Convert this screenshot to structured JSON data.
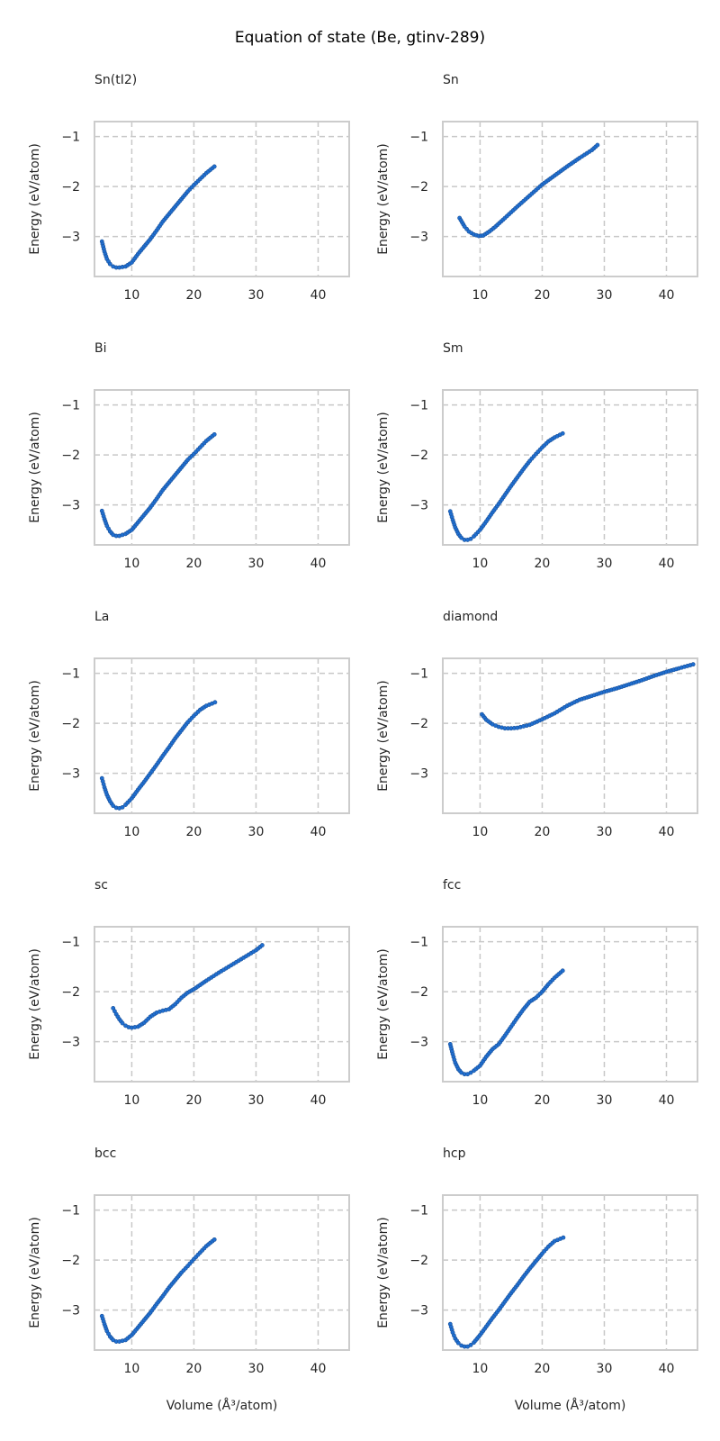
{
  "figure": {
    "suptitle": "Equation of state (Be, gtinv-289)",
    "ylabel": "Energy (eV/atom)",
    "xlabel": "Volume (Å³/atom)",
    "marker_color": "#1f6fd1",
    "marker_edge_color": "#1a4f96",
    "grid_color": "#c8c8c8",
    "spine_color": "#cccccc"
  },
  "chart_data": [
    {
      "type": "scatter",
      "title": "Sn(tI2)",
      "xlim": [
        4,
        45
      ],
      "ylim": [
        -3.8,
        -0.7
      ],
      "xticks": [
        10,
        20,
        30,
        40
      ],
      "yticks": [
        -1,
        -2,
        -3
      ],
      "grid": true,
      "x": [
        5.2,
        5.6,
        6.0,
        6.5,
        7.0,
        7.5,
        8.0,
        9.0,
        10.0,
        11.0,
        12.0,
        13.0,
        14.0,
        15.0,
        16.0,
        17.0,
        18.0,
        19.0,
        20.0,
        21.0,
        22.0,
        23.3
      ],
      "y": [
        -3.1,
        -3.3,
        -3.45,
        -3.55,
        -3.6,
        -3.62,
        -3.62,
        -3.6,
        -3.52,
        -3.35,
        -3.2,
        -3.05,
        -2.88,
        -2.7,
        -2.55,
        -2.4,
        -2.25,
        -2.1,
        -1.97,
        -1.85,
        -1.73,
        -1.6
      ]
    },
    {
      "type": "scatter",
      "title": "Sn",
      "xlim": [
        4,
        45
      ],
      "ylim": [
        -3.8,
        -0.7
      ],
      "xticks": [
        10,
        20,
        30,
        40
      ],
      "yticks": [
        -1,
        -2,
        -3
      ],
      "grid": true,
      "x": [
        6.7,
        7.5,
        8.2,
        9.0,
        9.8,
        10.5,
        11.5,
        12.5,
        14.0,
        16.0,
        18.0,
        20.0,
        22.0,
        24.0,
        26.0,
        28.0,
        28.9
      ],
      "y": [
        -2.63,
        -2.8,
        -2.9,
        -2.96,
        -2.99,
        -2.98,
        -2.9,
        -2.8,
        -2.63,
        -2.4,
        -2.18,
        -1.96,
        -1.78,
        -1.6,
        -1.43,
        -1.27,
        -1.17
      ]
    },
    {
      "type": "scatter",
      "title": "Bi",
      "xlim": [
        4,
        45
      ],
      "ylim": [
        -3.8,
        -0.7
      ],
      "xticks": [
        10,
        20,
        30,
        40
      ],
      "yticks": [
        -1,
        -2,
        -3
      ],
      "grid": true,
      "x": [
        5.2,
        5.6,
        6.0,
        6.5,
        7.0,
        7.5,
        8.0,
        9.0,
        10.0,
        11.0,
        12.0,
        13.0,
        14.0,
        15.0,
        16.0,
        17.0,
        18.0,
        19.0,
        20.0,
        21.0,
        22.0,
        23.3
      ],
      "y": [
        -3.12,
        -3.28,
        -3.42,
        -3.53,
        -3.6,
        -3.62,
        -3.62,
        -3.58,
        -3.5,
        -3.35,
        -3.2,
        -3.05,
        -2.88,
        -2.7,
        -2.55,
        -2.4,
        -2.25,
        -2.1,
        -1.98,
        -1.85,
        -1.72,
        -1.59
      ]
    },
    {
      "type": "scatter",
      "title": "Sm",
      "xlim": [
        4,
        45
      ],
      "ylim": [
        -3.8,
        -0.7
      ],
      "xticks": [
        10,
        20,
        30,
        40
      ],
      "yticks": [
        -1,
        -2,
        -3
      ],
      "grid": true,
      "x": [
        5.2,
        5.6,
        6.0,
        6.5,
        7.0,
        7.5,
        8.0,
        8.5,
        9.0,
        10.0,
        11.0,
        12.0,
        13.0,
        14.0,
        15.0,
        16.0,
        17.0,
        18.0,
        19.0,
        20.0,
        21.0,
        22.0,
        23.3
      ],
      "y": [
        -3.13,
        -3.3,
        -3.45,
        -3.58,
        -3.66,
        -3.7,
        -3.7,
        -3.68,
        -3.63,
        -3.5,
        -3.33,
        -3.15,
        -2.98,
        -2.8,
        -2.62,
        -2.45,
        -2.28,
        -2.12,
        -1.98,
        -1.85,
        -1.73,
        -1.65,
        -1.57
      ]
    },
    {
      "type": "scatter",
      "title": "La",
      "xlim": [
        4,
        45
      ],
      "ylim": [
        -3.8,
        -0.7
      ],
      "xticks": [
        10,
        20,
        30,
        40
      ],
      "yticks": [
        -1,
        -2,
        -3
      ],
      "grid": true,
      "x": [
        5.2,
        5.6,
        6.0,
        6.5,
        7.0,
        7.5,
        8.0,
        8.5,
        9.0,
        10.0,
        11.0,
        12.0,
        13.0,
        14.0,
        15.0,
        16.0,
        17.0,
        18.0,
        19.0,
        20.0,
        21.0,
        22.0,
        23.4
      ],
      "y": [
        -3.1,
        -3.28,
        -3.43,
        -3.56,
        -3.65,
        -3.69,
        -3.7,
        -3.68,
        -3.63,
        -3.5,
        -3.33,
        -3.17,
        -3.0,
        -2.83,
        -2.65,
        -2.48,
        -2.3,
        -2.14,
        -1.98,
        -1.85,
        -1.73,
        -1.65,
        -1.58
      ]
    },
    {
      "type": "scatter",
      "title": "diamond",
      "xlim": [
        4,
        45
      ],
      "ylim": [
        -3.8,
        -0.7
      ],
      "xticks": [
        10,
        20,
        30,
        40
      ],
      "yticks": [
        -1,
        -2,
        -3
      ],
      "grid": true,
      "x": [
        10.3,
        11.0,
        12.0,
        13.0,
        14.0,
        15.0,
        16.0,
        17.0,
        18.0,
        20.0,
        22.0,
        24.0,
        26.0,
        28.0,
        30.0,
        32.0,
        34.0,
        36.0,
        38.0,
        40.0,
        42.0,
        44.3
      ],
      "y": [
        -1.82,
        -1.93,
        -2.02,
        -2.07,
        -2.1,
        -2.1,
        -2.09,
        -2.06,
        -2.03,
        -1.92,
        -1.8,
        -1.65,
        -1.53,
        -1.45,
        -1.37,
        -1.3,
        -1.22,
        -1.14,
        -1.05,
        -0.97,
        -0.9,
        -0.82
      ]
    },
    {
      "type": "scatter",
      "title": "sc",
      "xlim": [
        4,
        45
      ],
      "ylim": [
        -3.8,
        -0.7
      ],
      "xticks": [
        10,
        20,
        30,
        40
      ],
      "yticks": [
        -1,
        -2,
        -3
      ],
      "grid": true,
      "x": [
        7.0,
        7.5,
        8.0,
        8.5,
        9.0,
        9.5,
        10.0,
        11.0,
        12.0,
        13.0,
        14.0,
        15.0,
        16.0,
        17.0,
        18.0,
        19.0,
        20.0,
        22.0,
        24.0,
        26.0,
        28.0,
        30.0,
        31.0
      ],
      "y": [
        -2.33,
        -2.45,
        -2.55,
        -2.63,
        -2.68,
        -2.71,
        -2.72,
        -2.7,
        -2.62,
        -2.5,
        -2.42,
        -2.38,
        -2.35,
        -2.25,
        -2.12,
        -2.02,
        -1.95,
        -1.78,
        -1.62,
        -1.47,
        -1.32,
        -1.17,
        -1.07
      ]
    },
    {
      "type": "scatter",
      "title": "fcc",
      "xlim": [
        4,
        45
      ],
      "ylim": [
        -3.8,
        -0.7
      ],
      "xticks": [
        10,
        20,
        30,
        40
      ],
      "yticks": [
        -1,
        -2,
        -3
      ],
      "grid": true,
      "x": [
        5.2,
        5.6,
        6.0,
        6.5,
        7.0,
        7.5,
        8.0,
        8.5,
        9.0,
        10.0,
        11.0,
        12.0,
        13.0,
        14.0,
        15.0,
        16.0,
        17.0,
        18.0,
        19.0,
        20.0,
        21.0,
        22.0,
        23.3
      ],
      "y": [
        -3.05,
        -3.25,
        -3.42,
        -3.55,
        -3.62,
        -3.65,
        -3.65,
        -3.62,
        -3.58,
        -3.48,
        -3.3,
        -3.15,
        -3.05,
        -2.88,
        -2.7,
        -2.52,
        -2.35,
        -2.2,
        -2.12,
        -2.0,
        -1.85,
        -1.72,
        -1.58
      ]
    },
    {
      "type": "scatter",
      "title": "bcc",
      "xlim": [
        4,
        45
      ],
      "ylim": [
        -3.8,
        -0.7
      ],
      "xticks": [
        10,
        20,
        30,
        40
      ],
      "yticks": [
        -1,
        -2,
        -3
      ],
      "grid": true,
      "x": [
        5.2,
        5.6,
        6.0,
        6.5,
        7.0,
        7.5,
        8.0,
        9.0,
        10.0,
        11.0,
        12.0,
        13.0,
        14.0,
        15.0,
        16.0,
        17.0,
        18.0,
        19.0,
        20.0,
        21.0,
        22.0,
        23.3
      ],
      "y": [
        -3.12,
        -3.28,
        -3.42,
        -3.53,
        -3.6,
        -3.63,
        -3.63,
        -3.6,
        -3.5,
        -3.35,
        -3.2,
        -3.05,
        -2.88,
        -2.72,
        -2.55,
        -2.4,
        -2.25,
        -2.12,
        -1.98,
        -1.85,
        -1.72,
        -1.59
      ]
    },
    {
      "type": "scatter",
      "title": "hcp",
      "xlim": [
        4,
        45
      ],
      "ylim": [
        -3.8,
        -0.7
      ],
      "xticks": [
        10,
        20,
        30,
        40
      ],
      "yticks": [
        -1,
        -2,
        -3
      ],
      "grid": true,
      "x": [
        5.2,
        5.6,
        6.0,
        6.5,
        7.0,
        7.5,
        8.0,
        8.5,
        9.0,
        10.0,
        11.0,
        12.0,
        13.0,
        14.0,
        15.0,
        16.0,
        17.0,
        18.0,
        19.0,
        20.0,
        21.0,
        22.0,
        23.4
      ],
      "y": [
        -3.28,
        -3.45,
        -3.57,
        -3.66,
        -3.71,
        -3.73,
        -3.73,
        -3.7,
        -3.65,
        -3.5,
        -3.33,
        -3.16,
        -3.0,
        -2.83,
        -2.66,
        -2.5,
        -2.33,
        -2.17,
        -2.02,
        -1.87,
        -1.73,
        -1.62,
        -1.55
      ]
    }
  ]
}
